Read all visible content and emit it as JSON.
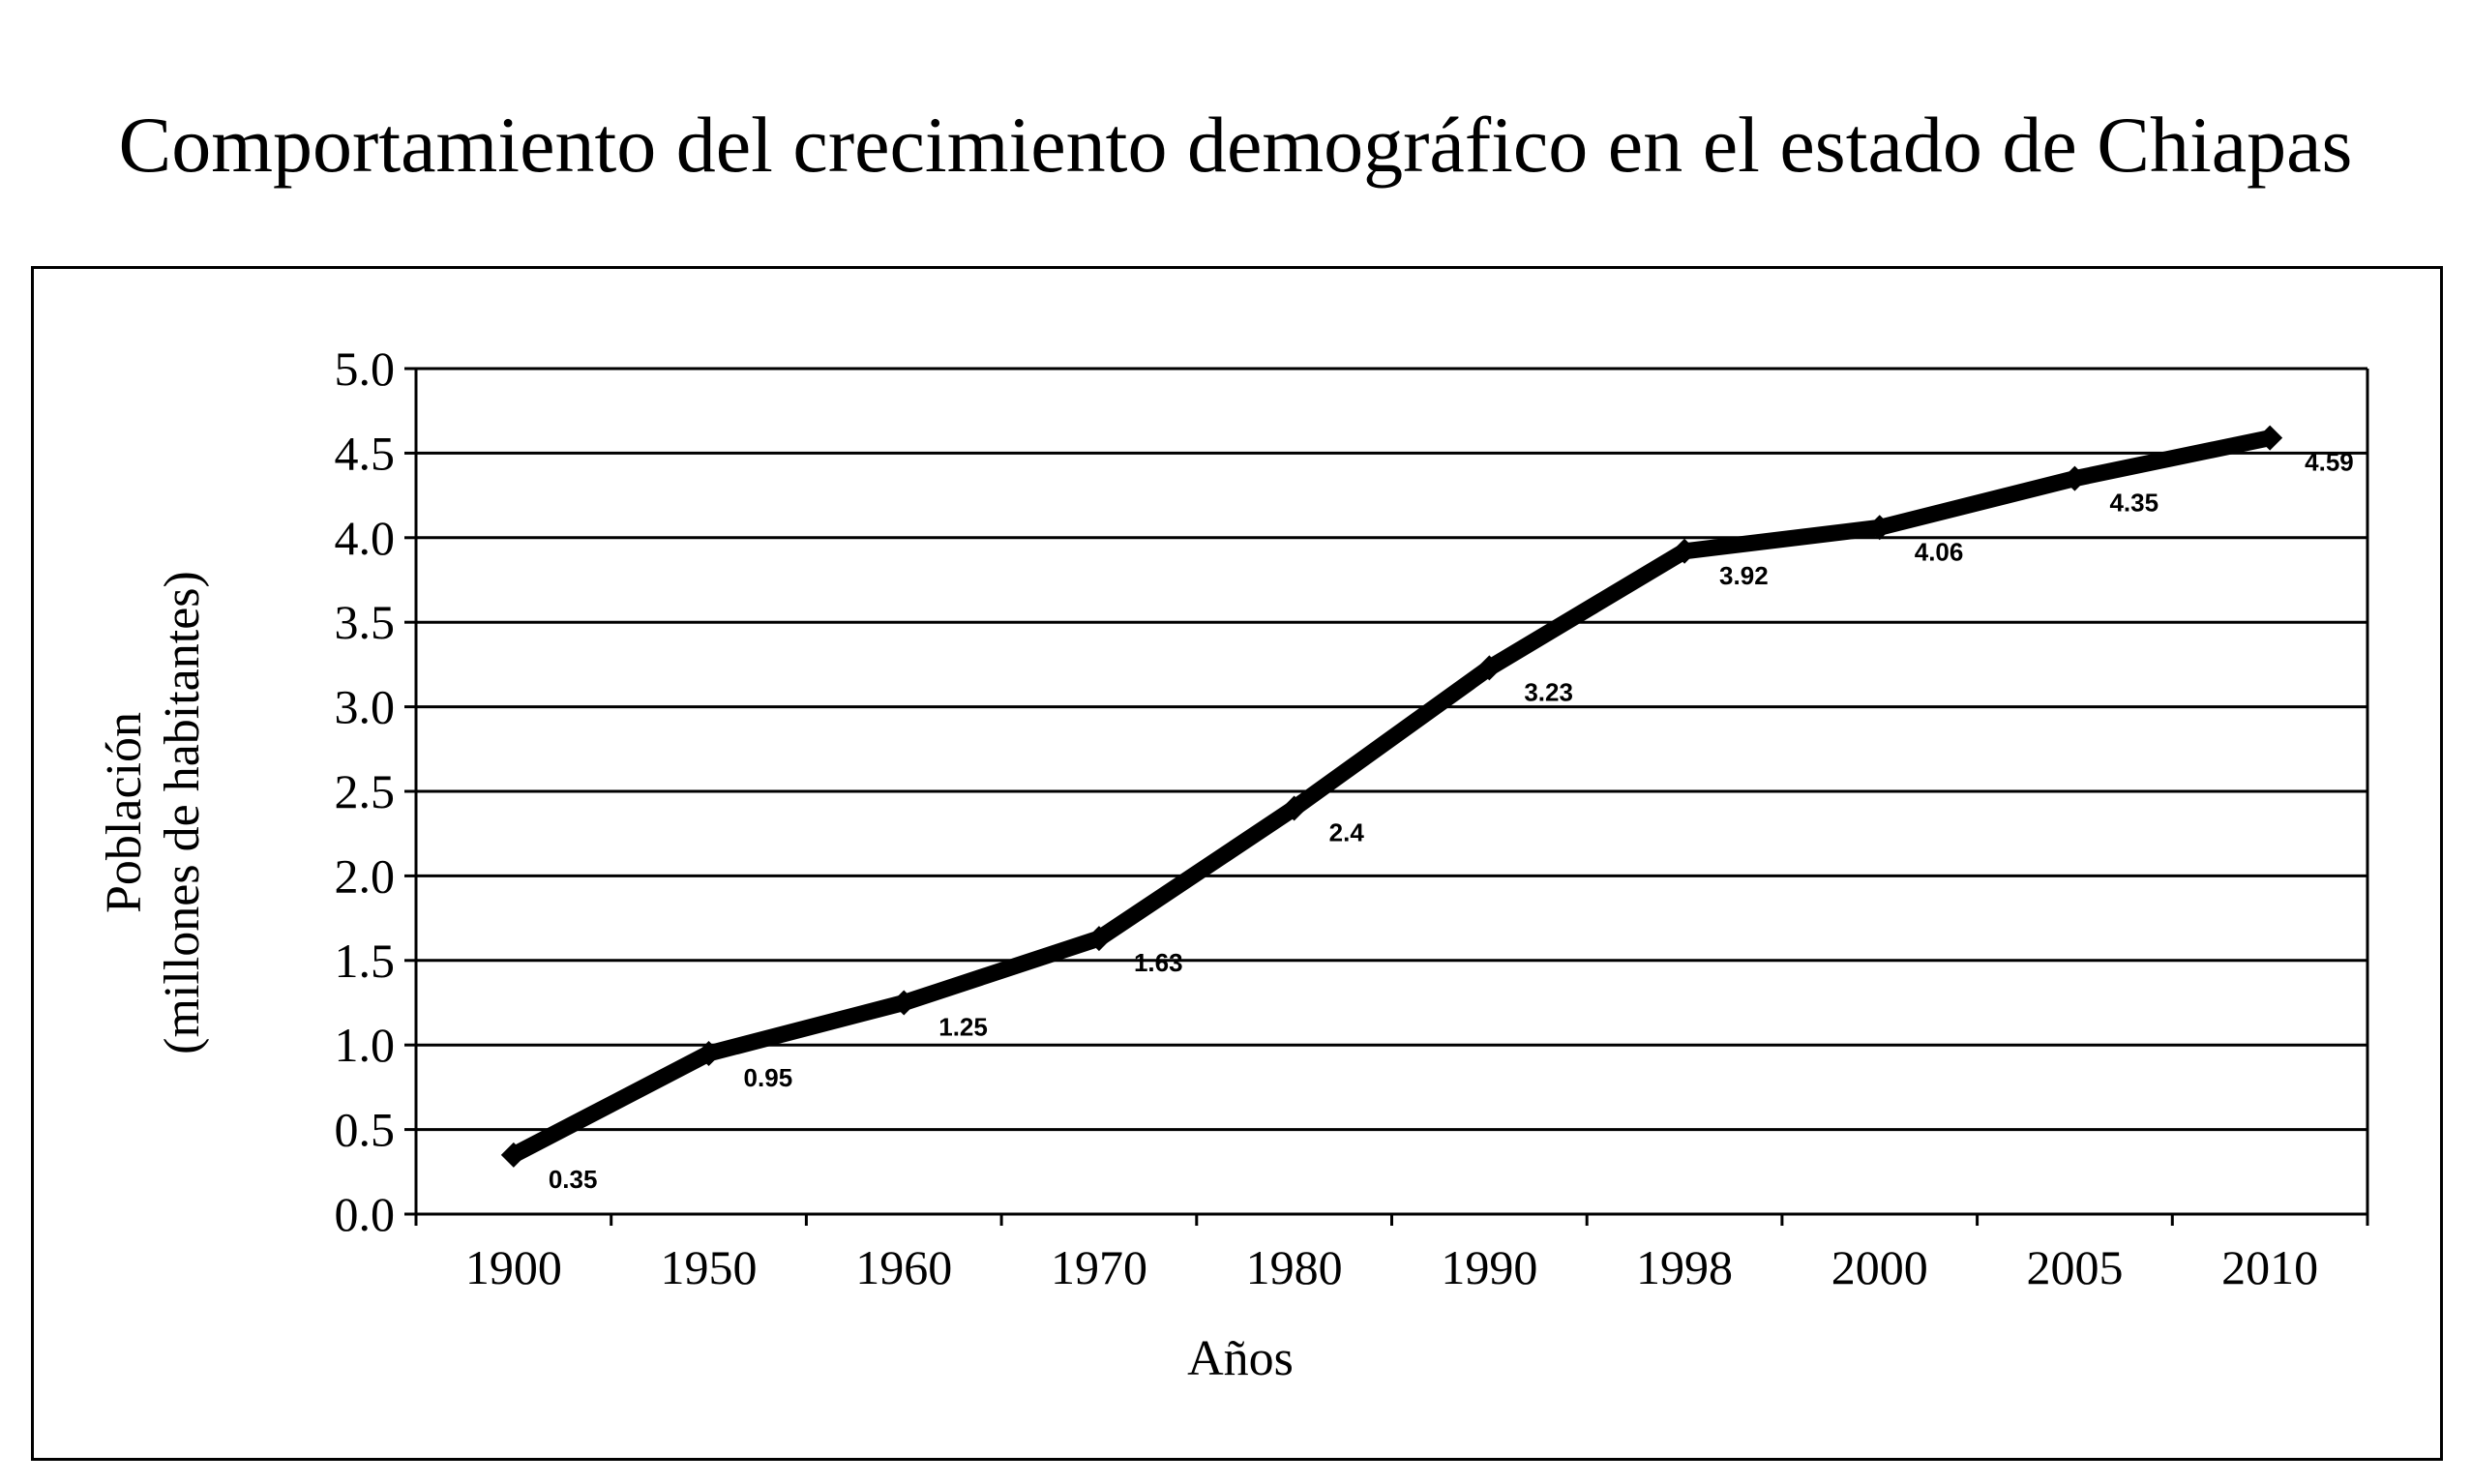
{
  "chart_data": {
    "type": "line",
    "title": "Comportamiento del crecimiento demográfico en el estado de Chiapas",
    "xlabel": "Años",
    "ylabel_line1": "Población",
    "ylabel_line2": "(millones de habitantes)",
    "categories": [
      "1900",
      "1950",
      "1960",
      "1970",
      "1980",
      "1990",
      "1998",
      "2000",
      "2005",
      "2010"
    ],
    "series": [
      {
        "values": [
          0.35,
          0.95,
          1.25,
          1.63,
          2.4,
          3.23,
          3.92,
          4.06,
          4.35,
          4.59
        ],
        "data_labels": [
          "0.35",
          "0.95",
          "1.25",
          "1.63",
          "2.4",
          "3.23",
          "3.92",
          "4.06",
          "4.35",
          "4.59"
        ]
      }
    ],
    "ylim": [
      0,
      5
    ],
    "yticks": [
      "0.0",
      "0.5",
      "1.0",
      "1.5",
      "2.0",
      "2.5",
      "3.0",
      "3.5",
      "4.0",
      "4.5",
      "5.0"
    ],
    "grid": true,
    "legend": false,
    "line_color": "#000000",
    "marker": "diamond"
  }
}
